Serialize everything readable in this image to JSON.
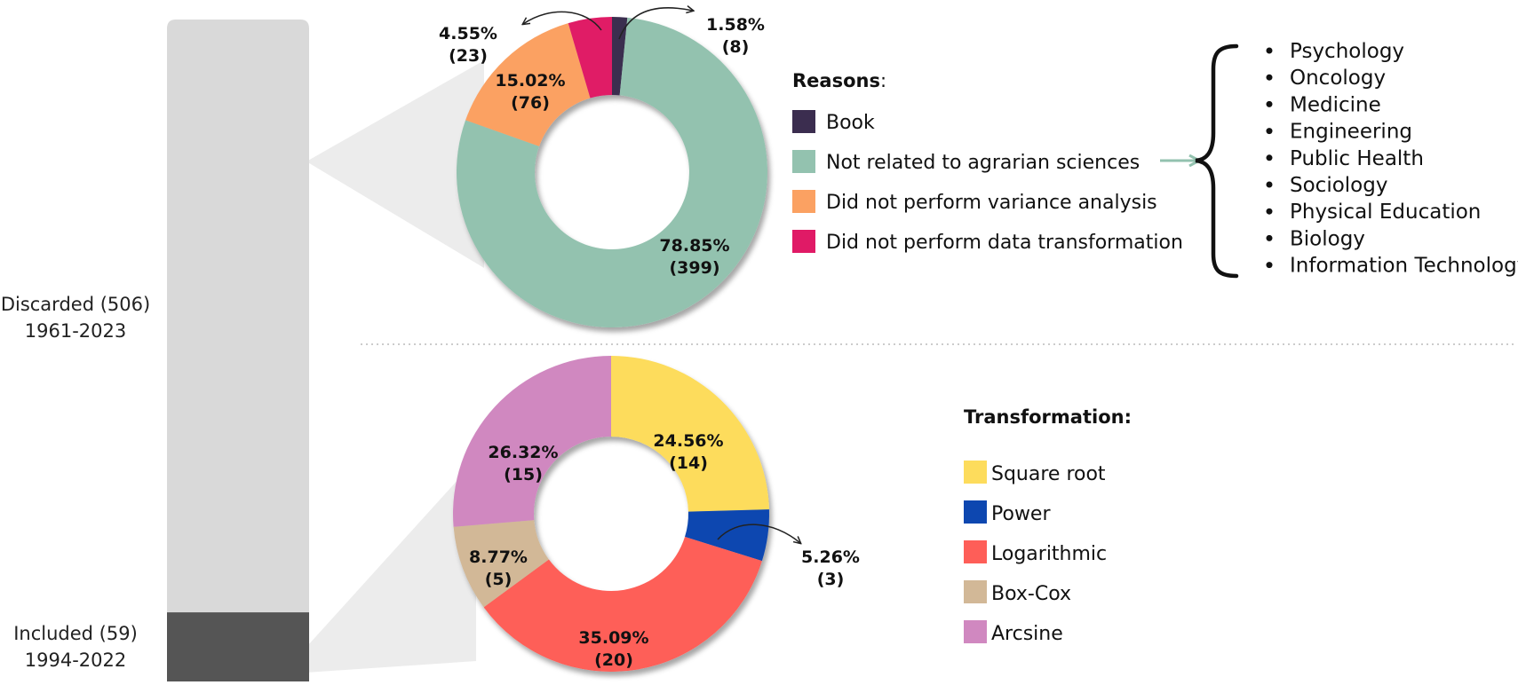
{
  "chart_data": [
    {
      "type": "bar",
      "orientation": "stacked-vertical",
      "categories": [
        "Discarded (506)",
        "Included (59)"
      ],
      "sublabels": [
        "1961-2023",
        "1994-2022"
      ],
      "values": [
        506,
        59
      ],
      "colors": [
        "#d9d9d9",
        "#555555"
      ]
    },
    {
      "type": "pie",
      "variant": "donut",
      "legend_title": "Reasons",
      "slices": [
        {
          "label": "Book",
          "value": 8,
          "percent": "1.58%",
          "count_text": "(8)",
          "color": "#3b2d4f"
        },
        {
          "label": "Not related to agrarian sciences",
          "value": 399,
          "percent": "78.85%",
          "count_text": "(399)",
          "color": "#93c2af"
        },
        {
          "label": "Did not perform  variance analysis",
          "value": 76,
          "percent": "15.02%",
          "count_text": "(76)",
          "color": "#fba162"
        },
        {
          "label": "Did not perform data transformation",
          "value": 23,
          "percent": "4.55%",
          "count_text": "(23)",
          "color": "#e01a66"
        }
      ],
      "slice_order": [
        0,
        1,
        2,
        3
      ],
      "related_fields": [
        "Psychology",
        "Oncology",
        "Medicine",
        "Engineering",
        "Public Health",
        "Sociology",
        "Physical Education",
        "Biology",
        "Information Technology"
      ]
    },
    {
      "type": "pie",
      "variant": "donut",
      "legend_title": "Transformation:",
      "slices": [
        {
          "label": "Square root",
          "value": 14,
          "percent": "24.56%",
          "count_text": "(14)",
          "color": "#fddc5c"
        },
        {
          "label": "Power",
          "value": 3,
          "percent": "5.26%",
          "count_text": "(3)",
          "color": "#0d47b0"
        },
        {
          "label": "Logarithmic",
          "value": 20,
          "percent": "35.09%",
          "count_text": "(20)",
          "color": "#fe5e58"
        },
        {
          "label": "Box-Cox",
          "value": 5,
          "percent": "8.77%",
          "count_text": "(5)",
          "color": "#d2b897"
        },
        {
          "label": "Arcsine",
          "value": 15,
          "percent": "26.32%",
          "count_text": "(15)",
          "color": "#d088c0"
        }
      ],
      "slice_order": [
        0,
        1,
        2,
        3,
        4
      ]
    }
  ]
}
